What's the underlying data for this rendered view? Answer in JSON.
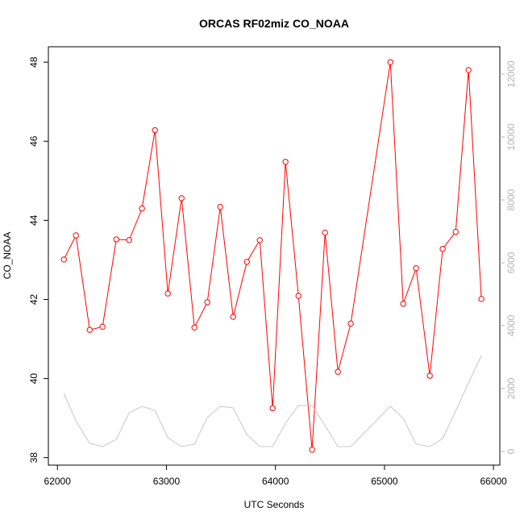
{
  "chart_data": {
    "type": "line",
    "title": "ORCAS RF02miz CO_NOAA",
    "x_label": "UTC Seconds",
    "y_label": "CO_NOAA",
    "x": [
      62059,
      62170,
      62296,
      62414,
      62540,
      62658,
      62776,
      62895,
      63013,
      63139,
      63257,
      63375,
      63494,
      63612,
      63738,
      63856,
      63974,
      64092,
      64211,
      64336,
      64455,
      64573,
      64691,
      65054,
      65172,
      65290,
      65416,
      65534,
      65653,
      65771,
      65889
    ],
    "series": [
      {
        "color": "#ff0000",
        "markers": true,
        "values": [
          43.01,
          43.62,
          41.23,
          41.31,
          43.52,
          43.5,
          44.3,
          46.28,
          42.15,
          44.56,
          41.29,
          41.93,
          44.34,
          41.56,
          42.95,
          43.5,
          39.25,
          45.48,
          42.09,
          38.2,
          43.69,
          40.17,
          41.39,
          48.0,
          41.89,
          42.79,
          40.07,
          43.28,
          43.71,
          47.8,
          42.01
        ]
      },
      {
        "color": "#c8c8c8",
        "markers": false,
        "axis": "y2",
        "values": [
          1846,
          974,
          256,
          154,
          385,
          1231,
          1436,
          1308,
          436,
          154,
          231,
          1077,
          1436,
          1385,
          538,
          154,
          154,
          897,
          1462,
          1462,
          821,
          154,
          154,
          1436,
          1051,
          231,
          154,
          410,
          1282,
          2179,
          3051
        ]
      }
    ],
    "xlim": [
      61917,
      66058
    ],
    "xticks": [
      62000,
      63000,
      64000,
      65000,
      66000
    ],
    "ylim": [
      37.81,
      48.39
    ],
    "yticks": [
      38,
      40,
      42,
      44,
      46,
      48
    ],
    "y2lim": [
      -436,
      12872
    ],
    "y2ticks": [
      0,
      2000,
      4000,
      6000,
      8000,
      10000,
      12000
    ],
    "y2_color": "#b4b4b4"
  }
}
